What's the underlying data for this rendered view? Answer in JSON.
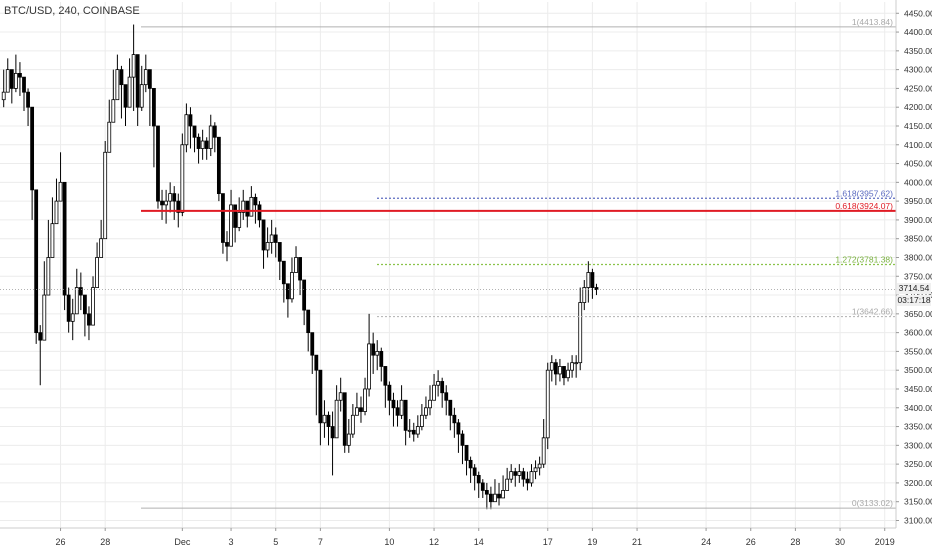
{
  "header": {
    "symbol_title": "BTC/USD, 240, COINBASE"
  },
  "price_tags": {
    "last_price": "3714.54",
    "countdown": "03:17:18"
  },
  "colors": {
    "candle_up": "#ffffff",
    "candle_down": "#000000",
    "candle_outline": "#000000",
    "grid": "#ececec",
    "fib_gray": "#b0b0b0",
    "fib_red": "#e01b24",
    "fib_green": "#8bc34a",
    "fib_blue": "#5c6bc0"
  },
  "chart_data": {
    "type": "candlestick",
    "title": "BTC/USD, 240, COINBASE",
    "ylim": [
      3080,
      4480
    ],
    "y_ticks": [
      4450,
      4400,
      4350,
      4300,
      4250,
      4200,
      4150,
      4100,
      4050,
      4000,
      3950,
      3900,
      3850,
      3800,
      3750,
      3700,
      3650,
      3600,
      3550,
      3500,
      3450,
      3400,
      3350,
      3300,
      3250,
      3200,
      3150,
      3100
    ],
    "x_tick_labels": [
      "26",
      "28",
      "Dec",
      "3",
      "5",
      "7",
      "10",
      "12",
      "14",
      "17",
      "19",
      "21",
      "24",
      "26",
      "28",
      "30",
      "2019"
    ],
    "x_tick_bar_index": [
      14,
      25,
      44,
      56,
      67,
      78,
      95,
      106,
      117,
      134,
      145,
      156,
      173,
      184,
      195,
      206,
      217
    ],
    "fib_levels": [
      {
        "label": "1(4413.84)",
        "value": 4413.84,
        "style": "gray-solid"
      },
      {
        "label": "1.618(3957.62)",
        "value": 3957.62,
        "style": "blue-dotted"
      },
      {
        "label": "0.618(3924.07)",
        "value": 3924.07,
        "style": "red-solid"
      },
      {
        "label": "1.272(3781.38)",
        "value": 3781.38,
        "style": "green-dotted"
      },
      {
        "label": "1(3642.66)",
        "value": 3642.66,
        "style": "gray-dotted"
      },
      {
        "label": "0(3133.02)",
        "value": 3133.02,
        "style": "gray-solid"
      }
    ],
    "close": [
      4240,
      4300,
      4250,
      4290,
      4280,
      4240,
      4200,
      3980,
      3600,
      3580,
      3700,
      3800,
      3890,
      3950,
      4000,
      3700,
      3630,
      3650,
      3720,
      3700,
      3650,
      3620,
      3720,
      3800,
      3850,
      4080,
      4160,
      4220,
      4300,
      4260,
      4200,
      4280,
      4340,
      4200,
      4260,
      4300,
      4250,
      4150,
      3950,
      3940,
      3950,
      3970,
      3950,
      3920,
      4100,
      4180,
      4150,
      4120,
      4090,
      4110,
      4090,
      4150,
      4120,
      3970,
      3840,
      3830,
      3940,
      3880,
      3920,
      3950,
      3910,
      3960,
      3940,
      3900,
      3820,
      3840,
      3860,
      3840,
      3790,
      3730,
      3690,
      3760,
      3800,
      3740,
      3660,
      3600,
      3540,
      3500,
      3360,
      3380,
      3350,
      3320,
      3420,
      3440,
      3300,
      3330,
      3380,
      3400,
      3390,
      3450,
      3570,
      3540,
      3550,
      3510,
      3460,
      3420,
      3400,
      3380,
      3420,
      3340,
      3340,
      3330,
      3350,
      3380,
      3400,
      3420,
      3460,
      3470,
      3440,
      3420,
      3380,
      3360,
      3330,
      3300,
      3260,
      3240,
      3220,
      3200,
      3180,
      3170,
      3150,
      3170,
      3160,
      3180,
      3210,
      3230,
      3220,
      3230,
      3210,
      3200,
      3230,
      3240,
      3250,
      3320,
      3500,
      3520,
      3490,
      3510,
      3480,
      3500,
      3520,
      3520,
      3680,
      3720,
      3760,
      3720,
      3714.54
    ],
    "high": [
      4300,
      4330,
      4290,
      4340,
      4320,
      4280,
      4250,
      4110,
      3750,
      3620,
      3790,
      3900,
      3960,
      4010,
      4080,
      3800,
      3720,
      3690,
      3770,
      3760,
      3700,
      3670,
      3750,
      3840,
      3900,
      4110,
      4220,
      4300,
      4340,
      4310,
      4250,
      4330,
      4420,
      4300,
      4310,
      4340,
      4300,
      4200,
      4070,
      3980,
      3980,
      4000,
      3990,
      3970,
      4130,
      4210,
      4200,
      4150,
      4130,
      4140,
      4120,
      4180,
      4160,
      4030,
      3880,
      3870,
      3980,
      3930,
      3960,
      3980,
      3950,
      3990,
      3970,
      3950,
      3860,
      3880,
      3900,
      3880,
      3830,
      3780,
      3730,
      3800,
      3830,
      3780,
      3700,
      3650,
      3590,
      3540,
      3420,
      3420,
      3390,
      3390,
      3460,
      3480,
      3380,
      3370,
      3410,
      3440,
      3430,
      3480,
      3650,
      3600,
      3580,
      3560,
      3510,
      3470,
      3440,
      3420,
      3460,
      3400,
      3370,
      3360,
      3380,
      3410,
      3430,
      3460,
      3490,
      3500,
      3480,
      3460,
      3420,
      3400,
      3370,
      3340,
      3300,
      3270,
      3250,
      3230,
      3210,
      3200,
      3190,
      3210,
      3200,
      3220,
      3240,
      3250,
      3240,
      3250,
      3240,
      3230,
      3250,
      3260,
      3270,
      3370,
      3520,
      3540,
      3530,
      3530,
      3510,
      3520,
      3540,
      3540,
      3720,
      3740,
      3790,
      3770,
      3730
    ],
    "low": [
      4200,
      4240,
      4210,
      4240,
      4230,
      4190,
      4150,
      3900,
      3570,
      3460,
      3640,
      3750,
      3860,
      3910,
      3950,
      3660,
      3600,
      3580,
      3660,
      3660,
      3590,
      3580,
      3620,
      3760,
      3810,
      3960,
      4120,
      4180,
      4250,
      4170,
      4150,
      4230,
      4190,
      4150,
      4190,
      4240,
      4150,
      4040,
      3930,
      3900,
      3890,
      3920,
      3900,
      3880,
      3910,
      4080,
      4090,
      4080,
      4050,
      4060,
      4060,
      4070,
      4080,
      3950,
      3810,
      3790,
      3830,
      3840,
      3870,
      3900,
      3880,
      3910,
      3890,
      3880,
      3770,
      3800,
      3810,
      3800,
      3740,
      3680,
      3640,
      3680,
      3760,
      3700,
      3620,
      3550,
      3490,
      3380,
      3300,
      3320,
      3300,
      3220,
      3340,
      3390,
      3280,
      3280,
      3320,
      3380,
      3360,
      3380,
      3430,
      3490,
      3500,
      3470,
      3400,
      3380,
      3350,
      3350,
      3370,
      3300,
      3320,
      3310,
      3320,
      3340,
      3370,
      3380,
      3420,
      3430,
      3400,
      3380,
      3340,
      3320,
      3280,
      3250,
      3220,
      3200,
      3180,
      3160,
      3160,
      3130,
      3130,
      3150,
      3140,
      3160,
      3180,
      3200,
      3190,
      3200,
      3190,
      3180,
      3190,
      3210,
      3220,
      3240,
      3290,
      3470,
      3460,
      3470,
      3460,
      3470,
      3480,
      3480,
      3500,
      3660,
      3680,
      3690,
      3700
    ]
  }
}
